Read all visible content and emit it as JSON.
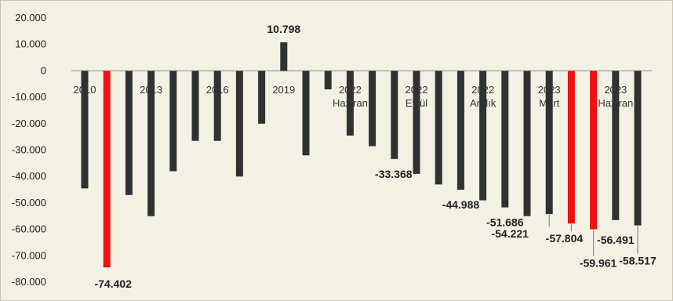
{
  "chart_data": {
    "type": "bar",
    "title": "",
    "xlabel": "",
    "ylabel": "",
    "ylim": [
      -80000,
      20000
    ],
    "yticks": [
      "20.000",
      "10.000",
      "0",
      "-10.000",
      "-20.000",
      "-30.000",
      "-40.000",
      "-50.000",
      "-60.000",
      "-70.000",
      "-80.000"
    ],
    "ytick_values": [
      20000,
      10000,
      0,
      -10000,
      -20000,
      -30000,
      -40000,
      -50000,
      -60000,
      -70000,
      -80000
    ],
    "colors": {
      "default": "#2f3133",
      "highlight": "#ee1111"
    },
    "categories": [
      "2010",
      "",
      "",
      "2013",
      "",
      "",
      "2016",
      "",
      "",
      "2019",
      "",
      "",
      "2022 Haziran",
      "",
      "",
      "2022 Eylül",
      "",
      "",
      "2022 Aralık",
      "",
      "",
      "2023 Mart",
      "",
      "",
      "2023 Haziran",
      ""
    ],
    "values": [
      -44500,
      -74402,
      -47000,
      -55000,
      -38000,
      -26500,
      -26500,
      -40000,
      -20000,
      10798,
      -32000,
      -7000,
      -24500,
      -28500,
      -33368,
      -39000,
      -43000,
      -44988,
      -49000,
      -51686,
      -55000,
      -54221,
      -57804,
      -59961,
      -56491,
      -58517
    ],
    "highlight": [
      false,
      true,
      false,
      false,
      false,
      false,
      false,
      false,
      false,
      false,
      false,
      false,
      false,
      false,
      false,
      false,
      false,
      false,
      false,
      false,
      false,
      false,
      true,
      true,
      false,
      false
    ],
    "data_labels": [
      {
        "index": 1,
        "text": "-74.402"
      },
      {
        "index": 9,
        "text": "10.798"
      },
      {
        "index": 14,
        "text": "-33.368"
      },
      {
        "index": 17,
        "text": "-44.988"
      },
      {
        "index": 19,
        "text": "-51.686"
      },
      {
        "index": 21,
        "text": "-54.221"
      },
      {
        "index": 22,
        "text": "-57.804"
      },
      {
        "index": 23,
        "text": "-59.961"
      },
      {
        "index": 24,
        "text": "-56.491"
      },
      {
        "index": 25,
        "text": "-58.517"
      }
    ],
    "grid": false,
    "legend": "none"
  }
}
